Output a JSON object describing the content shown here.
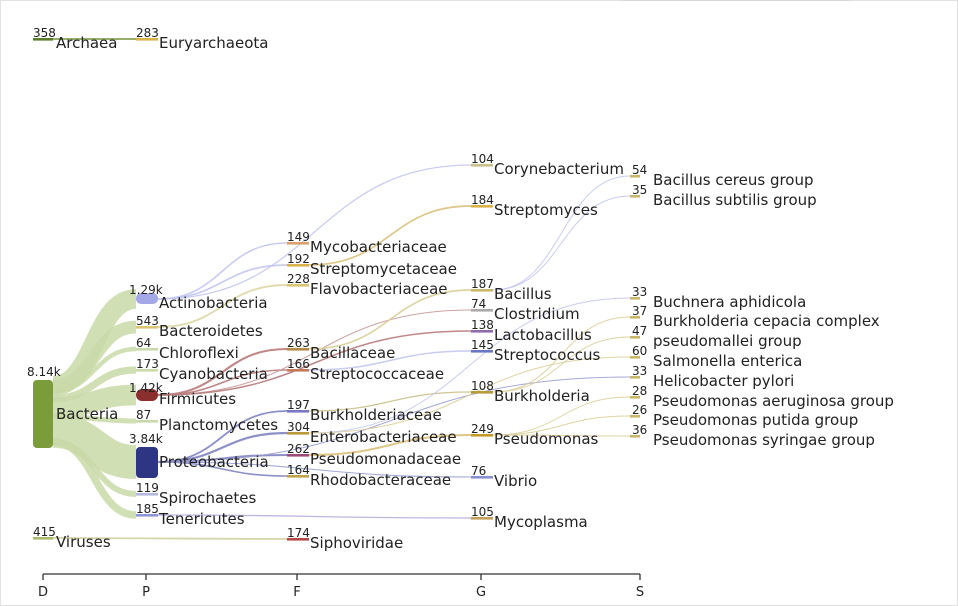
{
  "chart_data": {
    "type": "sankey",
    "title": "",
    "ranks": [
      "D",
      "P",
      "F",
      "G",
      "S"
    ],
    "colors": {
      "bacteria": "#7b9c3b",
      "firmicutes": "#8b2e2e",
      "proteobacteria": "#2e3583",
      "actinobacteria": "#a4a8e6",
      "bacteroidetes": "#d9c574",
      "link_default": "#c9d9a8"
    },
    "nodes": [
      {
        "id": "archaea",
        "name": "Archaea",
        "count": "358",
        "rank": "D"
      },
      {
        "id": "euryarchaeota",
        "name": "Euryarchaeota",
        "count": "283",
        "rank": "P"
      },
      {
        "id": "bacteria",
        "name": "Bacteria",
        "count": "8.14k",
        "rank": "D"
      },
      {
        "id": "viruses",
        "name": "Viruses",
        "count": "415",
        "rank": "D"
      },
      {
        "id": "actinobacteria",
        "name": "Actinobacteria",
        "count": "1.29k",
        "rank": "P"
      },
      {
        "id": "bacteroidetes",
        "name": "Bacteroidetes",
        "count": "543",
        "rank": "P"
      },
      {
        "id": "chloroflexi",
        "name": "Chloroflexi",
        "count": "64",
        "rank": "P"
      },
      {
        "id": "cyanobacteria",
        "name": "Cyanobacteria",
        "count": "173",
        "rank": "P"
      },
      {
        "id": "firmicutes",
        "name": "Firmicutes",
        "count": "1.42k",
        "rank": "P"
      },
      {
        "id": "planctomycetes",
        "name": "Planctomycetes",
        "count": "87",
        "rank": "P"
      },
      {
        "id": "proteobacteria",
        "name": "Proteobacteria",
        "count": "3.84k",
        "rank": "P"
      },
      {
        "id": "spirochaetes",
        "name": "Spirochaetes",
        "count": "119",
        "rank": "P"
      },
      {
        "id": "tenericutes",
        "name": "Tenericutes",
        "count": "185",
        "rank": "P"
      },
      {
        "id": "mycobacteriaceae",
        "name": "Mycobacteriaceae",
        "count": "149",
        "rank": "F"
      },
      {
        "id": "streptomycetaceae",
        "name": "Streptomycetaceae",
        "count": "192",
        "rank": "F"
      },
      {
        "id": "flavobacteriaceae",
        "name": "Flavobacteriaceae",
        "count": "228",
        "rank": "F"
      },
      {
        "id": "bacillaceae",
        "name": "Bacillaceae",
        "count": "263",
        "rank": "F"
      },
      {
        "id": "streptococcaceae",
        "name": "Streptococcaceae",
        "count": "166",
        "rank": "F"
      },
      {
        "id": "burkholderiaceae",
        "name": "Burkholderiaceae",
        "count": "197",
        "rank": "F"
      },
      {
        "id": "enterobacteriaceae",
        "name": "Enterobacteriaceae",
        "count": "304",
        "rank": "F"
      },
      {
        "id": "pseudomonadaceae",
        "name": "Pseudomonadaceae",
        "count": "262",
        "rank": "F"
      },
      {
        "id": "rhodobacteraceae",
        "name": "Rhodobacteraceae",
        "count": "164",
        "rank": "F"
      },
      {
        "id": "siphoviridae",
        "name": "Siphoviridae",
        "count": "174",
        "rank": "F"
      },
      {
        "id": "corynebacterium",
        "name": "Corynebacterium",
        "count": "104",
        "rank": "G"
      },
      {
        "id": "streptomyces",
        "name": "Streptomyces",
        "count": "184",
        "rank": "G"
      },
      {
        "id": "bacillus",
        "name": "Bacillus",
        "count": "187",
        "rank": "G"
      },
      {
        "id": "clostridium",
        "name": "Clostridium",
        "count": "74",
        "rank": "G"
      },
      {
        "id": "lactobacillus",
        "name": "Lactobacillus",
        "count": "138",
        "rank": "G"
      },
      {
        "id": "streptococcus",
        "name": "Streptococcus",
        "count": "145",
        "rank": "G"
      },
      {
        "id": "burkholderia",
        "name": "Burkholderia",
        "count": "108",
        "rank": "G"
      },
      {
        "id": "pseudomonas",
        "name": "Pseudomonas",
        "count": "249",
        "rank": "G"
      },
      {
        "id": "vibrio",
        "name": "Vibrio",
        "count": "76",
        "rank": "G"
      },
      {
        "id": "mycoplasma",
        "name": "Mycoplasma",
        "count": "105",
        "rank": "G"
      },
      {
        "id": "bacillus_cereus",
        "name": "Bacillus cereus group",
        "count": "54",
        "rank": "S"
      },
      {
        "id": "bacillus_subtilis",
        "name": "Bacillus subtilis group",
        "count": "35",
        "rank": "S"
      },
      {
        "id": "buchnera",
        "name": "Buchnera aphidicola",
        "count": "33",
        "rank": "S"
      },
      {
        "id": "burkholderia_cepacia",
        "name": "Burkholderia cepacia complex",
        "count": "37",
        "rank": "S"
      },
      {
        "id": "pseudomallei",
        "name": "pseudomallei group",
        "count": "47",
        "rank": "S"
      },
      {
        "id": "salmonella",
        "name": "Salmonella enterica",
        "count": "60",
        "rank": "S"
      },
      {
        "id": "helicobacter",
        "name": "Helicobacter pylori",
        "count": "33",
        "rank": "S"
      },
      {
        "id": "ps_aeruginosa",
        "name": "Pseudomonas aeruginosa group",
        "count": "28",
        "rank": "S"
      },
      {
        "id": "ps_putida",
        "name": "Pseudomonas putida group",
        "count": "26",
        "rank": "S"
      },
      {
        "id": "ps_syringae",
        "name": "Pseudomonas syringae group",
        "count": "36",
        "rank": "S"
      }
    ],
    "links": [
      {
        "source": "archaea",
        "target": "euryarchaeota",
        "value": 283
      },
      {
        "source": "bacteria",
        "target": "actinobacteria",
        "value": 1290
      },
      {
        "source": "bacteria",
        "target": "bacteroidetes",
        "value": 543
      },
      {
        "source": "bacteria",
        "target": "chloroflexi",
        "value": 64
      },
      {
        "source": "bacteria",
        "target": "cyanobacteria",
        "value": 173
      },
      {
        "source": "bacteria",
        "target": "firmicutes",
        "value": 1420
      },
      {
        "source": "bacteria",
        "target": "planctomycetes",
        "value": 87
      },
      {
        "source": "bacteria",
        "target": "proteobacteria",
        "value": 3840
      },
      {
        "source": "bacteria",
        "target": "spirochaetes",
        "value": 119
      },
      {
        "source": "bacteria",
        "target": "tenericutes",
        "value": 185
      },
      {
        "source": "viruses",
        "target": "siphoviridae",
        "value": 174
      },
      {
        "source": "actinobacteria",
        "target": "mycobacteriaceae",
        "value": 149
      },
      {
        "source": "actinobacteria",
        "target": "streptomycetaceae",
        "value": 192
      },
      {
        "source": "actinobacteria",
        "target": "corynebacterium",
        "value": 104
      },
      {
        "source": "bacteroidetes",
        "target": "flavobacteriaceae",
        "value": 228
      },
      {
        "source": "firmicutes",
        "target": "bacillaceae",
        "value": 263
      },
      {
        "source": "firmicutes",
        "target": "streptococcaceae",
        "value": 166
      },
      {
        "source": "firmicutes",
        "target": "clostridium",
        "value": 74
      },
      {
        "source": "firmicutes",
        "target": "lactobacillus",
        "value": 138
      },
      {
        "source": "proteobacteria",
        "target": "burkholderiaceae",
        "value": 197
      },
      {
        "source": "proteobacteria",
        "target": "enterobacteriaceae",
        "value": 304
      },
      {
        "source": "proteobacteria",
        "target": "pseudomonadaceae",
        "value": 262
      },
      {
        "source": "proteobacteria",
        "target": "rhodobacteraceae",
        "value": 164
      },
      {
        "source": "proteobacteria",
        "target": "vibrio",
        "value": 76
      },
      {
        "source": "proteobacteria",
        "target": "helicobacter",
        "value": 33
      },
      {
        "source": "tenericutes",
        "target": "mycoplasma",
        "value": 105
      },
      {
        "source": "streptomycetaceae",
        "target": "streptomyces",
        "value": 184
      },
      {
        "source": "bacillaceae",
        "target": "bacillus",
        "value": 187
      },
      {
        "source": "streptococcaceae",
        "target": "streptococcus",
        "value": 145
      },
      {
        "source": "burkholderiaceae",
        "target": "burkholderia",
        "value": 108
      },
      {
        "source": "pseudomonadaceae",
        "target": "pseudomonas",
        "value": 249
      },
      {
        "source": "enterobacteriaceae",
        "target": "buchnera",
        "value": 33
      },
      {
        "source": "enterobacteriaceae",
        "target": "salmonella",
        "value": 60
      },
      {
        "source": "bacillus",
        "target": "bacillus_cereus",
        "value": 54
      },
      {
        "source": "bacillus",
        "target": "bacillus_subtilis",
        "value": 35
      },
      {
        "source": "burkholderia",
        "target": "burkholderia_cepacia",
        "value": 37
      },
      {
        "source": "burkholderia",
        "target": "pseudomallei",
        "value": 47
      },
      {
        "source": "pseudomonas",
        "target": "ps_aeruginosa",
        "value": 28
      },
      {
        "source": "pseudomonas",
        "target": "ps_putida",
        "value": 26
      },
      {
        "source": "pseudomonas",
        "target": "ps_syringae",
        "value": 36
      }
    ]
  }
}
